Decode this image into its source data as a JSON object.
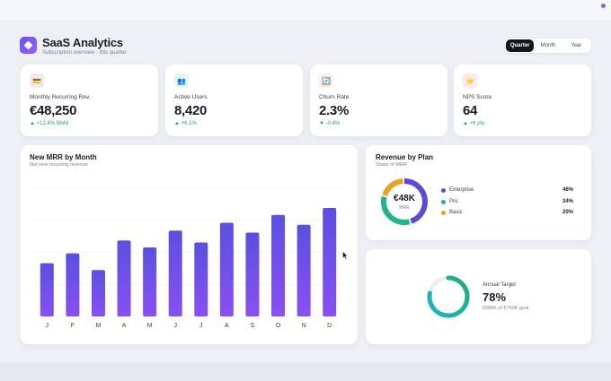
{
  "app": {
    "title": "SaaS Analytics",
    "subtitle": "Subscription overview · this quarter"
  },
  "period_tabs": [
    {
      "label": "Quarter",
      "active": true
    },
    {
      "label": "Month",
      "active": false
    },
    {
      "label": "Year",
      "active": false
    }
  ],
  "kpis": [
    {
      "icon": "credit-card-icon",
      "glyph": "💳",
      "icon_bg": "#ece9fb",
      "label": "Monthly Recurring Rev.",
      "value": "€48,250",
      "delta": "▲ +12.4% MoM"
    },
    {
      "icon": "users-icon",
      "glyph": "👥",
      "icon_bg": "#e6f6ef",
      "label": "Active Users",
      "value": "8,420",
      "delta": "▲ +6.1%"
    },
    {
      "icon": "refresh-icon",
      "glyph": "🔄",
      "icon_bg": "#fdeee3",
      "label": "Churn Rate",
      "value": "2.3%",
      "delta": "▼ -0.4%"
    },
    {
      "icon": "star-icon",
      "glyph": "⭐",
      "icon_bg": "#fde8ec",
      "label": "NPS Score",
      "value": "64",
      "delta": "▲ +6 pts"
    }
  ],
  "mrr_panel": {
    "title": "New MRR by Month",
    "subtitle": "Net new recurring revenue"
  },
  "plan_panel": {
    "title": "Revenue by Plan",
    "subtitle": "Share of MRR",
    "center_value": "€48K",
    "center_label": "MRR"
  },
  "target_panel": {
    "title": "Annual Target",
    "value": "78%",
    "note": "€580K of €740K goal",
    "progress": 0.78
  },
  "colors": {
    "accent": "#6c4ef2",
    "positive": "#22a06b",
    "enterprise": "#5b4bdb",
    "pro": "#1fb58a",
    "basic": "#f0a01e"
  },
  "chart_data": [
    {
      "type": "bar",
      "title": "New MRR by Month",
      "categories": [
        "J",
        "F",
        "M",
        "A",
        "M",
        "J",
        "J",
        "A",
        "S",
        "O",
        "N",
        "D"
      ],
      "values": [
        54,
        64,
        47,
        77,
        70,
        87,
        75,
        95,
        85,
        103,
        93,
        110
      ],
      "ylim": [
        0,
        130
      ],
      "grid": true
    },
    {
      "type": "pie",
      "title": "Revenue by Plan",
      "categories": [
        "Enterprise",
        "Pro",
        "Basic"
      ],
      "values": [
        46,
        34,
        20
      ],
      "labels": [
        "46%",
        "34%",
        "20%"
      ]
    }
  ]
}
